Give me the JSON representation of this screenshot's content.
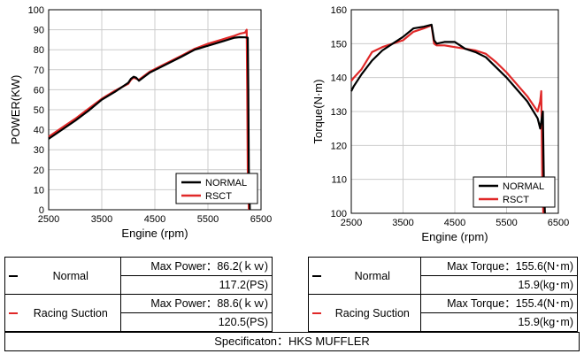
{
  "colors": {
    "normal": "#000000",
    "rsct": "#e02828",
    "grid": "#cccccc"
  },
  "chart_data": [
    {
      "type": "line",
      "title": "",
      "xlabel": "Engine (rpm)",
      "ylabel": "POWER(KW)",
      "xlim": [
        2500,
        6500
      ],
      "ylim": [
        0,
        100
      ],
      "xticks": [
        2500,
        3500,
        4500,
        5500,
        6500
      ],
      "yticks": [
        0,
        10,
        20,
        30,
        40,
        50,
        60,
        70,
        80,
        90,
        100
      ],
      "grid": true,
      "legend_position": "bottom-right",
      "series": [
        {
          "name": "NORMAL",
          "color": "#000000",
          "x": [
            2500,
            2750,
            3000,
            3250,
            3500,
            3750,
            4000,
            4050,
            4100,
            4150,
            4200,
            4400,
            4700,
            5000,
            5250,
            5500,
            5750,
            6000,
            6100,
            6200,
            6250,
            6260,
            6270,
            6290
          ],
          "y": [
            35.5,
            40,
            44.5,
            49.5,
            55,
            59,
            63.5,
            65.5,
            66.5,
            66,
            64.5,
            68.5,
            72.5,
            76.5,
            80,
            82,
            84,
            86,
            86.3,
            86.2,
            86,
            60,
            20,
            0
          ]
        },
        {
          "name": "RSCT",
          "color": "#e02828",
          "x": [
            2500,
            2750,
            3000,
            3250,
            3500,
            3750,
            4000,
            4050,
            4100,
            4150,
            4200,
            4400,
            4700,
            5000,
            5250,
            5500,
            5750,
            6000,
            6100,
            6200,
            6230,
            6240,
            6250,
            6270
          ],
          "y": [
            36.5,
            41,
            45.5,
            50.5,
            55.5,
            59.5,
            63,
            65,
            66,
            65.5,
            65,
            69,
            73,
            77,
            80.5,
            83,
            85,
            87,
            88,
            88.6,
            90,
            60,
            20,
            0
          ]
        }
      ]
    },
    {
      "type": "line",
      "title": "",
      "xlabel": "Engine (rpm)",
      "ylabel": "Torque(N·m)",
      "xlim": [
        2500,
        6500
      ],
      "ylim": [
        100,
        160
      ],
      "xticks": [
        2500,
        3500,
        4500,
        5500,
        6500
      ],
      "yticks": [
        100,
        110,
        120,
        130,
        140,
        150,
        160
      ],
      "grid": true,
      "legend_position": "bottom-right",
      "series": [
        {
          "name": "NORMAL",
          "color": "#000000",
          "x": [
            2500,
            2550,
            2700,
            2900,
            3100,
            3300,
            3500,
            3700,
            3900,
            4050,
            4100,
            4150,
            4300,
            4500,
            4700,
            4900,
            5100,
            5300,
            5500,
            5700,
            5900,
            6100,
            6150,
            6200,
            6220,
            6240
          ],
          "y": [
            136,
            137.5,
            141,
            145,
            148,
            150,
            152,
            154.5,
            155,
            155.6,
            151,
            150,
            150.5,
            150.5,
            148.5,
            147.5,
            146,
            143,
            140,
            136.5,
            133,
            128,
            125,
            130,
            110,
            100
          ]
        },
        {
          "name": "RSCT",
          "color": "#e02828",
          "x": [
            2500,
            2550,
            2700,
            2900,
            3100,
            3300,
            3500,
            3700,
            3900,
            4050,
            4100,
            4150,
            4300,
            4500,
            4700,
            4900,
            5100,
            5300,
            5500,
            5700,
            5900,
            6100,
            6150,
            6170,
            6190,
            6210
          ],
          "y": [
            139,
            140,
            142.5,
            147.5,
            149,
            150,
            151,
            153.5,
            154.5,
            155.4,
            150,
            149.5,
            149.5,
            149,
            148.5,
            148,
            147,
            144.5,
            141.5,
            138,
            134.5,
            130,
            133,
            136,
            110,
            100
          ]
        }
      ]
    }
  ],
  "table_left": {
    "rows": [
      {
        "symbol_color": "#000000",
        "name": "Normal",
        "line1": "Max Power：86.2(ｋｗ)",
        "line2": "117.2(PS)"
      },
      {
        "symbol_color": "#e02828",
        "name": "Racing Suction",
        "line1": "Max Power：88.6(ｋｗ)",
        "line2": "120.5(PS)"
      }
    ]
  },
  "table_right": {
    "rows": [
      {
        "symbol_color": "#000000",
        "name": "Normal",
        "line1": "Max Torque：155.6(N･m)",
        "line2": "15.9(kg･m)"
      },
      {
        "symbol_color": "#e02828",
        "name": "Racing Suction",
        "line1": "Max Torque：155.4(N･m)",
        "line2": "15.9(kg･m)"
      }
    ]
  },
  "footer": {
    "text": "Specificaton：HKS MUFFLER"
  }
}
